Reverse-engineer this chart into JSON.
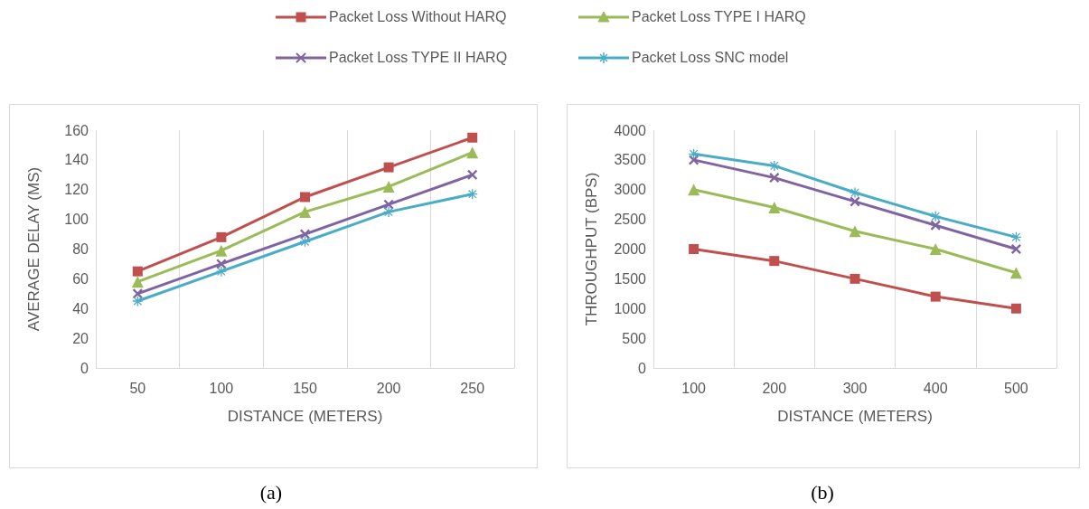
{
  "chart_data": [
    {
      "type": "line",
      "xlabel": "DISTANCE (METERS)",
      "ylabel": "AVERAGE DELAY (MS)",
      "categories": [
        "50",
        "100",
        "150",
        "200",
        "250"
      ],
      "ylim": [
        0,
        160
      ],
      "yticks": [
        0,
        20,
        40,
        60,
        80,
        100,
        120,
        140,
        160
      ],
      "grid": "x",
      "legend": "top",
      "annotations": [
        "(a)"
      ],
      "series": [
        {
          "name": "Packet Loss Without HARQ",
          "color": "#c0504d",
          "marker": "square",
          "values": [
            65,
            88,
            115,
            135,
            155
          ]
        },
        {
          "name": "Packet Loss TYPE I HARQ",
          "color": "#9bbb59",
          "marker": "triangle",
          "values": [
            58,
            79,
            105,
            122,
            145
          ]
        },
        {
          "name": "Packet Loss TYPE II HARQ",
          "color": "#8064a2",
          "marker": "cross",
          "values": [
            50,
            70,
            90,
            110,
            130
          ]
        },
        {
          "name": "Packet Loss SNC model",
          "color": "#4bacc6",
          "marker": "star",
          "values": [
            45,
            65,
            85,
            105,
            117
          ]
        }
      ]
    },
    {
      "type": "line",
      "xlabel": "DISTANCE (METERS)",
      "ylabel": "THROUGHPUT (BPS)",
      "categories": [
        "100",
        "200",
        "300",
        "400",
        "500"
      ],
      "ylim": [
        0,
        4000
      ],
      "yticks": [
        0,
        500,
        1000,
        1500,
        2000,
        2500,
        3000,
        3500,
        4000
      ],
      "grid": "x",
      "annotations": [
        "(b)"
      ],
      "series": [
        {
          "color": "#c0504d",
          "marker": "square",
          "values": [
            2000,
            1800,
            1500,
            1200,
            1000
          ]
        },
        {
          "color": "#9bbb59",
          "marker": "triangle",
          "values": [
            3000,
            2700,
            2300,
            2000,
            1600
          ]
        },
        {
          "color": "#8064a2",
          "marker": "cross",
          "values": [
            3500,
            3200,
            2800,
            2400,
            2000
          ]
        },
        {
          "color": "#4bacc6",
          "marker": "star",
          "values": [
            3600,
            3400,
            2950,
            2550,
            2200
          ]
        }
      ]
    }
  ]
}
